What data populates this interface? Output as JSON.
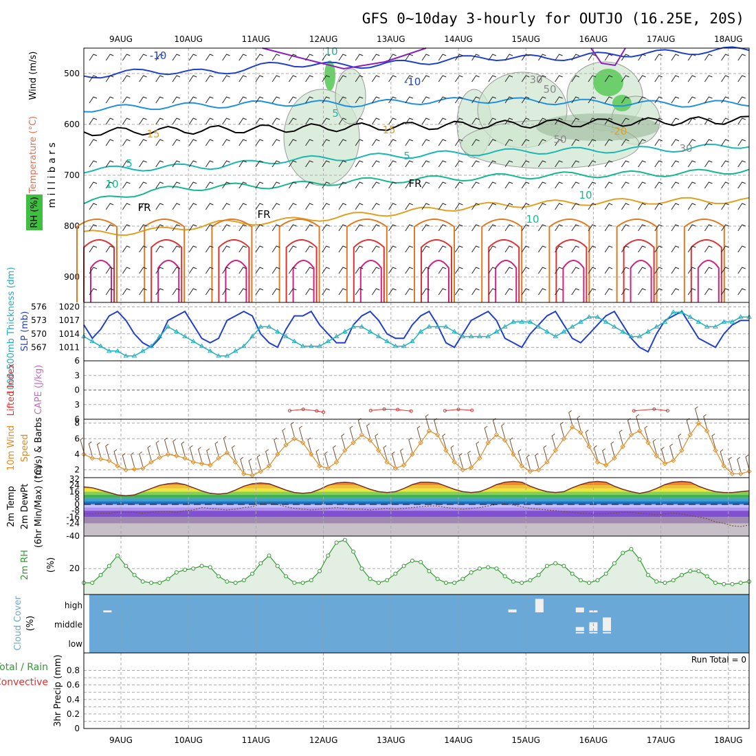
{
  "title": "GFS 0~10day 3-hourly for OUTJO (16.25E, 20S)",
  "colors": {
    "temp_neg10": "#1f3fd0",
    "temp_neg5_0": "#1e90e0",
    "temp_5": "#18b8b0",
    "temp_10": "#14b890",
    "temp_15": "#e0a020",
    "temp_20": "#e07a20",
    "temp_25": "#e03030",
    "temp_30": "#d02080",
    "violet": "#8a1fc0",
    "rh": "#2f9a2f",
    "slp": "#1f3fd0",
    "thickness": "#20b0c0",
    "wind": "#e08a20",
    "cloud_bg": "#6aa8d8",
    "cape": "#c070c0",
    "li": "#e03030"
  },
  "chart_data": [
    {
      "id": "upper-air",
      "type": "contour",
      "x_ticks": [
        "9AUG",
        "10AUG",
        "11AUG",
        "12AUG",
        "13AUG",
        "14AUG",
        "15AUG",
        "16AUG",
        "17AUG",
        "18AUG"
      ],
      "ylabel": "m i l l i b a r s",
      "y_ticks": [
        "500",
        "600",
        "700",
        "800",
        "900"
      ],
      "side_labels": [
        "RH (%)",
        "Temperature (°C)",
        "Wind (m/s)"
      ],
      "contour_labels": [
        "-10",
        "-10",
        "5",
        "5",
        "5",
        "FR",
        "FR",
        "FR",
        "10",
        "10",
        "15",
        "15",
        "-20",
        "10",
        "50",
        "30",
        "50",
        "30",
        "10"
      ],
      "freezing_level_mb": 615,
      "temperature_contours": [
        {
          "value": "-10",
          "levels_mb": [
            505,
            495,
            498,
            480,
            485,
            478,
            468,
            470,
            462,
            458,
            452
          ]
        },
        {
          "value": "-5",
          "levels_mb": [
            570,
            565,
            562,
            558,
            560,
            555,
            552,
            555,
            558,
            560,
            558
          ]
        },
        {
          "value": "5",
          "levels_mb": [
            690,
            685,
            682,
            670,
            665,
            660,
            655,
            652,
            650,
            648,
            640
          ]
        },
        {
          "value": "10",
          "levels_mb": [
            755,
            730,
            722,
            720,
            712,
            708,
            704,
            700,
            698,
            696,
            690
          ]
        },
        {
          "value": "15",
          "levels_mb": [
            815,
            810,
            795,
            790,
            780,
            770,
            760,
            755,
            752,
            750,
            750
          ]
        }
      ]
    },
    {
      "id": "slp-thickness",
      "type": "line",
      "ylabel_left": "1000-500mb Thickness (dm)",
      "ylabel_right": "SLP (mb)",
      "y_ticks_left": [
        "576",
        "573",
        "570",
        "567"
      ],
      "y_ticks_right": [
        "1020",
        "1017",
        "1014",
        "1011"
      ],
      "series": [
        {
          "name": "SLP (mb)",
          "values": [
            1016,
            1013,
            1015,
            1018,
            1019,
            1017,
            1014,
            1012,
            1011,
            1013,
            1017,
            1018,
            1019,
            1016,
            1013,
            1012,
            1013,
            1017,
            1018,
            1019,
            1018,
            1014,
            1012,
            1011,
            1015,
            1018,
            1018,
            1019,
            1016,
            1014,
            1012,
            1012,
            1016,
            1018,
            1019,
            1017,
            1014,
            1013,
            1013,
            1016,
            1018,
            1019,
            1016,
            1012,
            1011,
            1014,
            1017,
            1018,
            1019,
            1017,
            1013,
            1012,
            1011,
            1014,
            1016,
            1018,
            1019,
            1016,
            1013,
            1012,
            1014,
            1016,
            1018,
            1019,
            1016,
            1013,
            1011,
            1010,
            1014,
            1017,
            1018,
            1019,
            1016,
            1013,
            1012,
            1011,
            1014,
            1016,
            1017,
            1017
          ]
        },
        {
          "name": "1000-500mb Thickness (dm)",
          "values": [
            570,
            569,
            568,
            567,
            567,
            566,
            566,
            567,
            568,
            570,
            572,
            571,
            570,
            569,
            568,
            567,
            566,
            566,
            567,
            568,
            570,
            572,
            572,
            571,
            570,
            569,
            568,
            568,
            568,
            569,
            570,
            571,
            572,
            572,
            571,
            570,
            569,
            568,
            568,
            569,
            571,
            572,
            572,
            572,
            571,
            570,
            570,
            570,
            570,
            571,
            572,
            573,
            573,
            573,
            572,
            571,
            570,
            571,
            572,
            573,
            574,
            574,
            573,
            572,
            571,
            570,
            570,
            571,
            572,
            573,
            575,
            575,
            574,
            573,
            572,
            572,
            573,
            573,
            574,
            574
          ]
        }
      ]
    },
    {
      "id": "li-cape",
      "type": "line",
      "ylabel_left": "Lifted Index",
      "ylabel_right": "CAPE (J/kg)",
      "y_ticks": [
        "6",
        "3",
        "0",
        "3",
        "6"
      ],
      "series": [
        {
          "name": "Lifted Index",
          "points": [
            [
              3.0,
              4.4
            ],
            [
              3.2,
              3.1
            ],
            [
              3.4,
              4.6
            ],
            [
              3.5,
              5.8
            ],
            [
              4.2,
              4.2
            ],
            [
              4.4,
              2.9
            ],
            [
              4.6,
              3.3
            ],
            [
              4.8,
              4.8
            ],
            [
              5.3,
              4.4
            ],
            [
              5.5,
              3.1
            ],
            [
              5.7,
              4.0
            ],
            [
              8.1,
              4.5
            ],
            [
              8.4,
              2.9
            ],
            [
              8.6,
              4.4
            ]
          ]
        }
      ]
    },
    {
      "id": "wind-10m",
      "type": "line",
      "ylabel": "10m Wind Speed (m/s) & Barbs",
      "y_ticks": [
        "8",
        "6",
        "4",
        "2"
      ],
      "ylim": [
        1,
        8.5
      ],
      "series": [
        {
          "name": "10m Wind Speed",
          "values": [
            4.0,
            3.5,
            3.4,
            3.2,
            2.5,
            2.0,
            2.1,
            2.2,
            3.0,
            3.6,
            4.0,
            3.8,
            3.5,
            3.0,
            2.8,
            2.6,
            3.5,
            4.2,
            3.0,
            1.5,
            1.3,
            1.8,
            2.5,
            4.0,
            5.2,
            6.0,
            5.5,
            4.0,
            2.5,
            2.2,
            3.0,
            4.5,
            5.5,
            6.5,
            5.8,
            4.5,
            3.0,
            2.2,
            2.6,
            4.0,
            5.5,
            7.0,
            6.5,
            4.5,
            3.0,
            2.0,
            2.3,
            3.5,
            5.5,
            6.5,
            5.8,
            4.0,
            2.5,
            1.8,
            2.0,
            3.0,
            4.5,
            6.0,
            7.5,
            6.8,
            5.0,
            3.0,
            2.6,
            3.5,
            5.0,
            6.5,
            7.0,
            5.5,
            3.8,
            2.8,
            3.2,
            4.5,
            6.5,
            8.0,
            7.0,
            4.5,
            2.5,
            1.5,
            1.5,
            1.8
          ]
        }
      ]
    },
    {
      "id": "temp-2m",
      "type": "area",
      "ylabel": "2m Temp 2m DewPt (6hr Min/Max) (°C)",
      "y_ticks": [
        "32",
        "24",
        "16",
        "8",
        "0",
        "-8",
        "-16",
        "-24",
        "-40"
      ],
      "series": [
        {
          "name": "2m Temp",
          "values": [
            22,
            21,
            18,
            15,
            12,
            11,
            12,
            16,
            20,
            24,
            26,
            27,
            25,
            21,
            17,
            14,
            13,
            14,
            18,
            23,
            26,
            27,
            26,
            22,
            18,
            15,
            14,
            15,
            19,
            24,
            27,
            28,
            27,
            23,
            19,
            16,
            15,
            16,
            20,
            25,
            28,
            28,
            27,
            23,
            19,
            16,
            15,
            16,
            20,
            25,
            28,
            29,
            28,
            23,
            19,
            16,
            15,
            16,
            21,
            25,
            28,
            29,
            28,
            23,
            19,
            16,
            14,
            16,
            20,
            25,
            28,
            29,
            28,
            23,
            19,
            16,
            15,
            15,
            16,
            17
          ]
        },
        {
          "name": "2m DewPt",
          "values": [
            -12,
            -12,
            -11,
            -11,
            -10,
            -10,
            -10,
            -11,
            -10,
            -9,
            -9,
            -10,
            -8,
            -7,
            -4,
            -5,
            -6,
            -7,
            -6,
            -4,
            -3,
            1,
            2,
            0,
            -3,
            -5,
            -6,
            -7,
            -6,
            -5,
            -4,
            -5,
            -6,
            -6,
            -7,
            -6,
            -5,
            -6,
            -5,
            -4,
            -3,
            -2,
            -2,
            -4,
            -5,
            -6,
            -5,
            -4,
            -2,
            0,
            1,
            -1,
            -3,
            -5,
            -6,
            -7,
            -8,
            -9,
            -10,
            -11,
            -12,
            -12,
            -12,
            -11,
            -10,
            -10,
            -11,
            -12,
            -13,
            -12,
            -11,
            -12,
            -14,
            -16,
            -18,
            -22,
            -24,
            -27,
            -28,
            -26
          ]
        }
      ]
    },
    {
      "id": "rh-2m",
      "type": "area",
      "ylabel": "2m RH (%)",
      "y_ticks": [
        "20"
      ],
      "ylim": [
        0,
        45
      ],
      "series": [
        {
          "name": "2m RH",
          "values": [
            9,
            9,
            15,
            22,
            30,
            22,
            15,
            10,
            9,
            9,
            12,
            17,
            19,
            20,
            22,
            21,
            14,
            10,
            9,
            11,
            16,
            24,
            30,
            22,
            14,
            9,
            9,
            11,
            18,
            30,
            40,
            42,
            33,
            20,
            12,
            9,
            11,
            16,
            22,
            26,
            25,
            18,
            12,
            9,
            9,
            12,
            17,
            20,
            21,
            20,
            14,
            10,
            9,
            11,
            15,
            22,
            24,
            22,
            16,
            11,
            9,
            11,
            16,
            24,
            32,
            35,
            27,
            15,
            10,
            9,
            11,
            15,
            18,
            18,
            14,
            9,
            8,
            8,
            9,
            10
          ]
        }
      ]
    },
    {
      "id": "cloud-cover",
      "type": "bar",
      "ylabel": "Cloud Cover (%)",
      "layers": [
        "high",
        "middle",
        "low"
      ],
      "series": [
        {
          "name": "high",
          "points": [
            [
              0.3,
              10
            ],
            [
              6.3,
              15
            ],
            [
              6.7,
              70
            ],
            [
              7.3,
              25
            ],
            [
              7.5,
              10
            ]
          ]
        },
        {
          "name": "middle",
          "points": [
            [
              7.3,
              20
            ],
            [
              7.5,
              45
            ],
            [
              7.7,
              70
            ]
          ]
        },
        {
          "name": "low",
          "points": [
            [
              7.3,
              5
            ],
            [
              7.5,
              5
            ],
            [
              7.7,
              5
            ]
          ]
        }
      ]
    },
    {
      "id": "precip-3hr",
      "type": "bar",
      "ylabel": "3hr Precip (mm)",
      "legend": [
        "Total / Rain",
        "Convective"
      ],
      "run_total": "Run Total = 0",
      "y_ticks": [
        "0.8",
        "0.6",
        "0.4",
        "0.2",
        "0"
      ],
      "ylim": [
        0,
        0.9
      ],
      "values": []
    }
  ]
}
